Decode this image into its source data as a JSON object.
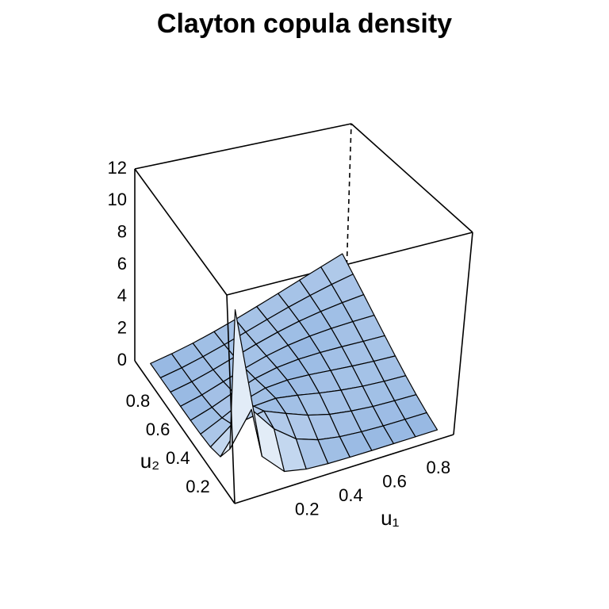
{
  "chart_data": {
    "type": "surface",
    "title": "Clayton copula density",
    "xlabel": "u₁",
    "ylabel": "u₂",
    "x": [
      0.05,
      0.15,
      0.25,
      0.35,
      0.45,
      0.55,
      0.65,
      0.75,
      0.85,
      0.95
    ],
    "y": [
      0.05,
      0.15,
      0.25,
      0.35,
      0.45,
      0.55,
      0.65,
      0.75,
      0.85,
      0.95
    ],
    "z": [
      [
        10.6,
        1.72,
        0.438,
        0.167,
        0.08,
        0.044,
        0.027,
        0.018,
        0.012,
        0.009
      ],
      [
        1.72,
        3.64,
        2.09,
        1.08,
        0.6,
        0.36,
        0.23,
        0.15,
        0.11,
        0.08
      ],
      [
        0.438,
        2.09,
        2.3,
        1.73,
        1.19,
        0.8,
        0.56,
        0.39,
        0.29,
        0.21
      ],
      [
        0.167,
        1.08,
        1.73,
        1.77,
        1.51,
        1.19,
        0.91,
        0.69,
        0.53,
        0.41
      ],
      [
        0.08,
        0.6,
        1.19,
        1.51,
        1.54,
        1.4,
        1.2,
        1.0,
        0.82,
        0.67
      ],
      [
        0.044,
        0.36,
        0.8,
        1.19,
        1.4,
        1.45,
        1.39,
        1.27,
        1.12,
        0.98
      ],
      [
        0.027,
        0.23,
        0.56,
        0.91,
        1.2,
        1.39,
        1.48,
        1.48,
        1.42,
        1.32
      ],
      [
        0.018,
        0.15,
        0.39,
        0.69,
        1.0,
        1.27,
        1.48,
        1.61,
        1.68,
        1.7
      ],
      [
        0.012,
        0.11,
        0.29,
        0.53,
        0.82,
        1.12,
        1.42,
        1.68,
        1.91,
        2.09
      ],
      [
        0.009,
        0.08,
        0.21,
        0.41,
        0.67,
        0.98,
        1.32,
        1.7,
        2.09,
        2.5
      ]
    ],
    "xlim": [
      0,
      1
    ],
    "ylim": [
      0,
      1
    ],
    "zlim": [
      0,
      12
    ],
    "xticks": [
      0.2,
      0.4,
      0.6,
      0.8
    ],
    "yticks": [
      0.2,
      0.4,
      0.6,
      0.8
    ],
    "zticks": [
      0,
      2,
      4,
      6,
      8,
      10,
      12
    ],
    "color": "#8cb1e0"
  }
}
